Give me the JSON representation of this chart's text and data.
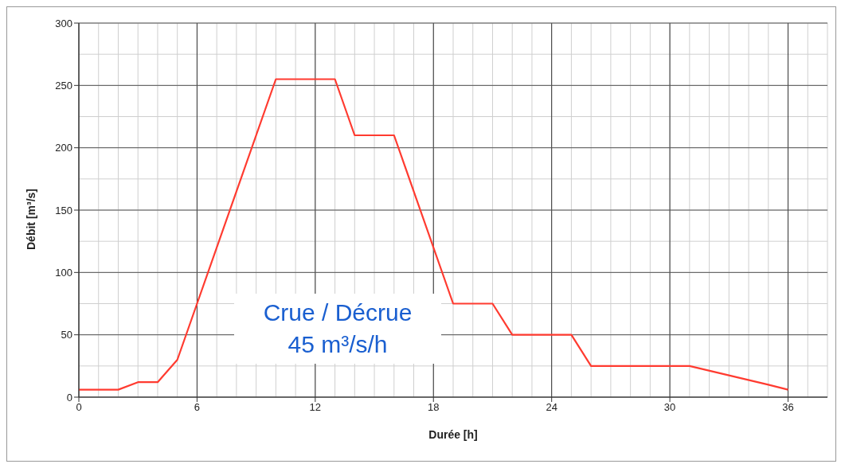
{
  "chart_data": {
    "type": "line",
    "xlabel": "Durée [h]",
    "ylabel": "Débit [m³/s]",
    "x": [
      0,
      2,
      3,
      4,
      5,
      6,
      10,
      13,
      14,
      16,
      19,
      21,
      22,
      25,
      26,
      31,
      35,
      36
    ],
    "series": [
      {
        "color": "#ff3b30",
        "values": [
          6,
          6,
          12,
          12,
          30,
          75,
          255,
          255,
          210,
          210,
          75,
          75,
          50,
          50,
          25,
          25,
          10,
          6
        ]
      }
    ],
    "xlim": [
      0,
      38
    ],
    "xticks": [
      0,
      6,
      12,
      18,
      24,
      30,
      36
    ],
    "ylim": [
      0,
      300
    ],
    "yticks": [
      0,
      50,
      100,
      150,
      200,
      250,
      300
    ],
    "grid": true,
    "marker": "none",
    "line_style": "solid",
    "annotations": [
      "Crue / Décrue",
      "45 m³/s/h"
    ]
  }
}
